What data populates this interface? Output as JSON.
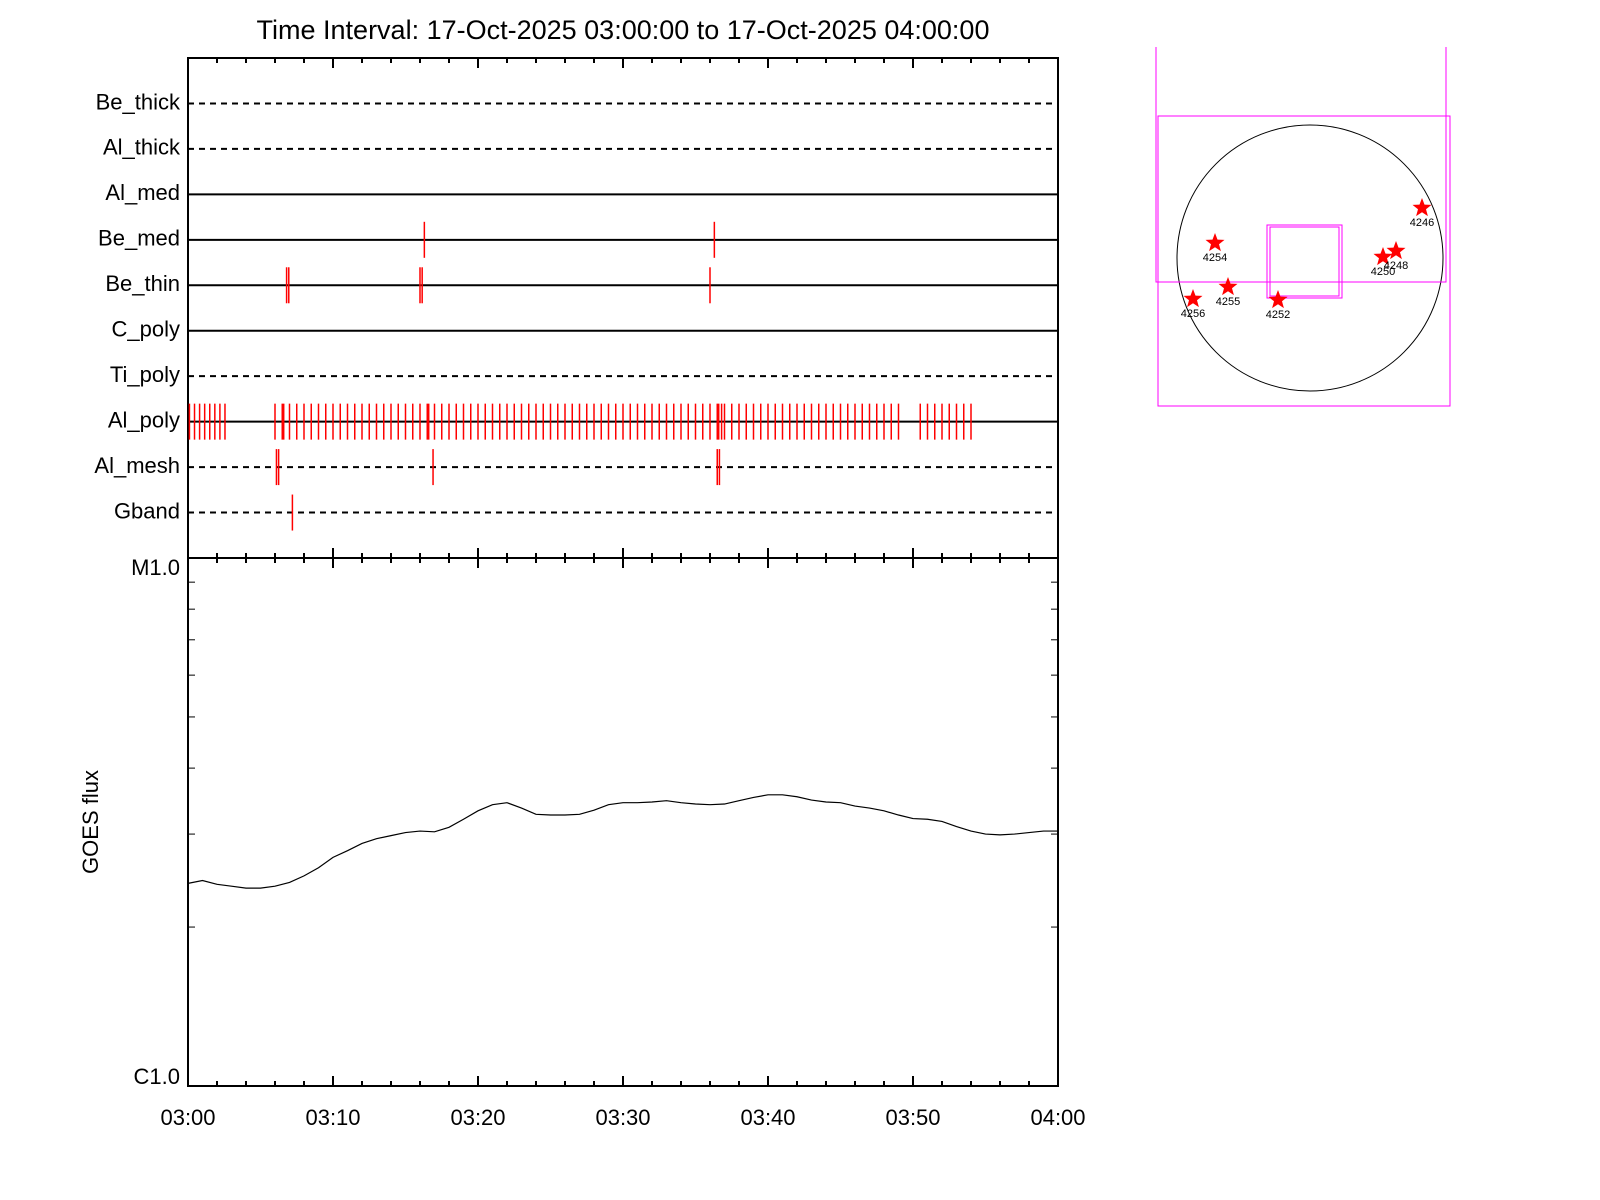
{
  "chart_data": [
    {
      "type": "eventplot",
      "title": "Time Interval: 17-Oct-2025 03:00:00 to 17-Oct-2025 04:00:00",
      "categories": [
        "Be_thick",
        "Al_thick",
        "Al_med",
        "Be_med",
        "Be_thin",
        "C_poly",
        "Ti_poly",
        "Al_poly",
        "Al_mesh",
        "Gband"
      ],
      "line_styles": [
        "dashed",
        "dashed",
        "solid",
        "solid",
        "solid",
        "solid",
        "dashed",
        "solid",
        "dashed",
        "dashed"
      ],
      "events": [
        [],
        [],
        [],
        [
          16.3,
          36.3
        ],
        [
          6.8,
          6.95,
          16.0,
          16.15,
          36.0
        ],
        [],
        [],
        [
          0.1,
          0.45,
          0.8,
          1.15,
          1.5,
          1.85,
          2.2,
          2.55,
          6,
          6.5,
          7,
          7.5,
          8,
          8.5,
          9,
          9.5,
          10,
          10.5,
          11,
          11.5,
          12,
          12.5,
          13,
          13.5,
          14,
          14.5,
          15,
          15.5,
          16,
          16.5,
          17,
          17.5,
          18,
          18.5,
          19,
          19.5,
          20,
          20.5,
          21,
          21.5,
          22,
          22.5,
          23,
          23.5,
          24,
          24.5,
          25,
          25.5,
          26,
          26.5,
          27,
          27.5,
          28,
          28.5,
          29,
          29.5,
          30,
          30.5,
          31,
          31.5,
          32,
          32.5,
          33,
          33.5,
          34,
          34.5,
          35,
          35.5,
          36,
          36.5,
          37,
          37.5,
          38,
          38.5,
          39,
          39.5,
          40,
          40.5,
          41,
          41.5,
          42,
          42.5,
          43,
          43.5,
          44,
          44.5,
          45,
          45.5,
          46,
          46.5,
          47,
          47.5,
          48,
          48.5,
          49,
          6.6,
          16.6,
          36.6,
          36.8,
          50.5,
          51,
          51.5,
          52,
          52.5,
          53,
          53.5,
          54
        ],
        [
          6.1,
          6.25,
          16.9,
          36.5,
          36.65
        ],
        [
          7.2
        ]
      ],
      "event_color": "#ff0000",
      "xlim": [
        0,
        60
      ],
      "xticks": [
        0,
        10,
        20,
        30,
        40,
        50,
        60
      ],
      "xminorticks": [
        2,
        4,
        6,
        8,
        12,
        14,
        16,
        18,
        22,
        24,
        26,
        28,
        32,
        34,
        36,
        38,
        42,
        44,
        46,
        48,
        52,
        54,
        56,
        58
      ]
    },
    {
      "type": "line",
      "ylabel": "GOES flux",
      "log_y": true,
      "color": "#000000",
      "x": [
        0,
        1,
        2,
        3,
        4,
        5,
        6,
        7,
        8,
        9,
        10,
        11,
        12,
        13,
        14,
        15,
        16,
        17,
        18,
        19,
        20,
        21,
        22,
        23,
        24,
        25,
        26,
        27,
        28,
        29,
        30,
        31,
        32,
        33,
        34,
        35,
        36,
        37,
        38,
        39,
        40,
        41,
        42,
        43,
        44,
        45,
        46,
        47,
        48,
        49,
        50,
        51,
        52,
        53,
        54,
        55,
        56,
        57,
        58,
        59,
        60
      ],
      "values": [
        2.42e-06,
        2.45e-06,
        2.41e-06,
        2.39e-06,
        2.37e-06,
        2.37e-06,
        2.39e-06,
        2.43e-06,
        2.5e-06,
        2.59e-06,
        2.71e-06,
        2.79e-06,
        2.88e-06,
        2.94e-06,
        2.98e-06,
        3.02e-06,
        3.04e-06,
        3.03e-06,
        3.09e-06,
        3.2e-06,
        3.32e-06,
        3.41e-06,
        3.44e-06,
        3.36e-06,
        3.27e-06,
        3.26e-06,
        3.26e-06,
        3.27e-06,
        3.33e-06,
        3.41e-06,
        3.44e-06,
        3.44e-06,
        3.45e-06,
        3.47e-06,
        3.44e-06,
        3.42e-06,
        3.41e-06,
        3.42e-06,
        3.47e-06,
        3.52e-06,
        3.56e-06,
        3.56e-06,
        3.53e-06,
        3.48e-06,
        3.45e-06,
        3.44e-06,
        3.39e-06,
        3.36e-06,
        3.32e-06,
        3.26e-06,
        3.21e-06,
        3.2e-06,
        3.17e-06,
        3.1e-06,
        3.04e-06,
        3e-06,
        2.99e-06,
        3e-06,
        3.02e-06,
        3.04e-06,
        3.04e-06
      ],
      "xlim": [
        0,
        60
      ],
      "xticks": [
        {
          "value": 0,
          "label": "03:00"
        },
        {
          "value": 10,
          "label": "03:10"
        },
        {
          "value": 20,
          "label": "03:20"
        },
        {
          "value": 30,
          "label": "03:30"
        },
        {
          "value": 40,
          "label": "03:40"
        },
        {
          "value": 50,
          "label": "03:50"
        },
        {
          "value": 60,
          "label": "04:00"
        }
      ],
      "xminorticks": [
        2,
        4,
        6,
        8,
        12,
        14,
        16,
        18,
        22,
        24,
        26,
        28,
        32,
        34,
        36,
        38,
        42,
        44,
        46,
        48,
        52,
        54,
        56,
        58
      ],
      "ylim": [
        1e-06,
        1e-05
      ],
      "yticks": [
        {
          "value": 1e-06,
          "label": "C1.0"
        },
        {
          "value": 1e-05,
          "label": "M1.0"
        }
      ],
      "yminorticks": [
        2e-06,
        3e-06,
        4e-06,
        5e-06,
        6e-06,
        7e-06,
        8e-06,
        9e-06
      ]
    }
  ],
  "disk": {
    "regions": [
      "4246",
      "4254",
      "4250",
      "4248",
      "4255",
      "4256",
      "4252"
    ],
    "star_color": "#ff0000",
    "box_color": "#ff00ff"
  }
}
